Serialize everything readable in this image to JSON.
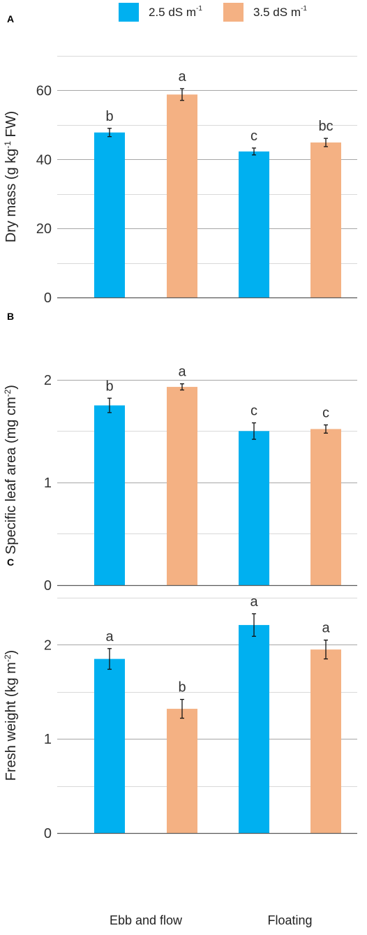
{
  "legend": {
    "items": [
      {
        "label": "2.5 dS m",
        "sup": "-1",
        "color": "#00B0F0"
      },
      {
        "label": "3.5 dS m",
        "sup": "-1",
        "color": "#F4B183"
      }
    ]
  },
  "colors": {
    "series1": "#00B0F0",
    "series2": "#F4B183",
    "grid": "#BFBFBF",
    "axis": "#595959",
    "error": "#111111"
  },
  "chart_data": [
    {
      "type": "bar",
      "panel": "A",
      "ylabel": "Dry mass (g kg",
      "ylabel_sup": "-1",
      "ylabel_suffix": " FW)",
      "ylim": [
        0,
        70
      ],
      "yticks": [
        0,
        20,
        40,
        60
      ],
      "grid_step": 10,
      "categories": [
        "Ebb and flow",
        "Floating"
      ],
      "series": [
        {
          "name": "2.5 dS m-1",
          "values": [
            47.8,
            42.3
          ],
          "errors": [
            1.2,
            1.0
          ],
          "letters": [
            "b",
            "c"
          ]
        },
        {
          "name": "3.5 dS m-1",
          "values": [
            58.8,
            44.9
          ],
          "errors": [
            1.7,
            1.2
          ],
          "letters": [
            "a",
            "bc"
          ]
        }
      ]
    },
    {
      "type": "bar",
      "panel": "B",
      "ylabel": "Specific leaf area (mg cm",
      "ylabel_sup": "-2",
      "ylabel_suffix": ")",
      "ylim": [
        0,
        2.25
      ],
      "yticks": [
        0,
        1,
        2
      ],
      "grid_step": 0.5,
      "categories": [
        "Ebb and flow",
        "Floating"
      ],
      "series": [
        {
          "name": "2.5 dS m-1",
          "values": [
            1.75,
            1.5
          ],
          "errors": [
            0.07,
            0.08
          ],
          "letters": [
            "b",
            "c"
          ]
        },
        {
          "name": "3.5 dS m-1",
          "values": [
            1.93,
            1.52
          ],
          "errors": [
            0.03,
            0.04
          ],
          "letters": [
            "a",
            "c"
          ]
        }
      ]
    },
    {
      "type": "bar",
      "panel": "C",
      "ylabel": "Fresh weight (kg m",
      "ylabel_sup": "-2",
      "ylabel_suffix": ")",
      "ylim": [
        0,
        2.5
      ],
      "yticks": [
        0,
        1,
        2
      ],
      "grid_step": 0.5,
      "categories": [
        "Ebb and flow",
        "Floating"
      ],
      "series": [
        {
          "name": "2.5 dS m-1",
          "values": [
            1.85,
            2.21
          ],
          "errors": [
            0.11,
            0.12
          ],
          "letters": [
            "a",
            "a"
          ]
        },
        {
          "name": "3.5 dS m-1",
          "values": [
            1.32,
            1.95
          ],
          "errors": [
            0.1,
            0.1
          ],
          "letters": [
            "b",
            "a"
          ]
        }
      ]
    }
  ]
}
